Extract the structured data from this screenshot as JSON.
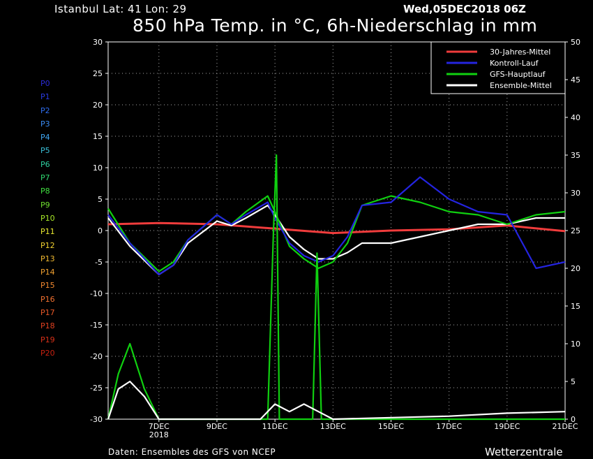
{
  "header": {
    "location": "Istanbul   Lat: 41  Lon: 29",
    "date": "Wed,05DEC2018 06Z",
    "title": "850 hPa Temp. in °C, 6h-Niederschlag in mm"
  },
  "members": [
    {
      "label": "P0",
      "color": "#2a2ad8"
    },
    {
      "label": "P1",
      "color": "#2a3ae0"
    },
    {
      "label": "P2",
      "color": "#2f6ef0"
    },
    {
      "label": "P3",
      "color": "#3a8cf4"
    },
    {
      "label": "P4",
      "color": "#40a8f4"
    },
    {
      "label": "P5",
      "color": "#3ac0d8"
    },
    {
      "label": "P6",
      "color": "#2ed0a0"
    },
    {
      "label": "P7",
      "color": "#30d870"
    },
    {
      "label": "P8",
      "color": "#40e040"
    },
    {
      "label": "P9",
      "color": "#70e030"
    },
    {
      "label": "P10",
      "color": "#a8e828"
    },
    {
      "label": "P11",
      "color": "#e8e830"
    },
    {
      "label": "P12",
      "color": "#f0d030"
    },
    {
      "label": "P13",
      "color": "#f0b830"
    },
    {
      "label": "P14",
      "color": "#f0a030"
    },
    {
      "label": "P15",
      "color": "#f08830"
    },
    {
      "label": "P16",
      "color": "#f07030"
    },
    {
      "label": "P17",
      "color": "#e85828"
    },
    {
      "label": "P18",
      "color": "#e04020"
    },
    {
      "label": "P19",
      "color": "#d83018"
    },
    {
      "label": "P20",
      "color": "#c82010"
    }
  ],
  "footer": {
    "source": "Daten: Ensembles des GFS von NCEP",
    "brand": "Wetterzentrale"
  },
  "chart_data": {
    "type": "line",
    "left_axis": {
      "label": "850 hPa Temp. in °C",
      "range": [
        -30,
        30
      ],
      "ticks": [
        30,
        25,
        20,
        15,
        10,
        5,
        0,
        -5,
        -10,
        -15,
        -20,
        -25,
        -30
      ]
    },
    "right_axis": {
      "label": "6h-Niederschlag in mm",
      "range": [
        0,
        50
      ],
      "ticks": [
        50,
        45,
        40,
        35,
        30,
        25,
        20,
        15,
        10,
        5,
        0
      ]
    },
    "x_axis": {
      "range_days": [
        5.25,
        21
      ],
      "ticks": [
        {
          "day": 7,
          "label": "7DEC",
          "sub": "2018"
        },
        {
          "day": 9,
          "label": "9DEC"
        },
        {
          "day": 11,
          "label": "11DEC"
        },
        {
          "day": 13,
          "label": "13DEC"
        },
        {
          "day": 15,
          "label": "15DEC"
        },
        {
          "day": 17,
          "label": "17DEC"
        },
        {
          "day": 19,
          "label": "19DEC"
        },
        {
          "day": 21,
          "label": "21DEC"
        }
      ]
    },
    "grid": true,
    "legend": {
      "placement": "top-right",
      "entries": [
        {
          "name": "30-Jahres-Mittel",
          "color": "#f03c3c"
        },
        {
          "name": "Kontroll-Lauf",
          "color": "#2424e0"
        },
        {
          "name": "GFS-Hauptlauf",
          "color": "#10d010"
        },
        {
          "name": "Ensemble-Mittel",
          "color": "#ffffff"
        }
      ]
    },
    "series": [
      {
        "name": "30-Jahres-Mittel",
        "axis": "temp",
        "color": "#f03c3c",
        "points": [
          [
            5.25,
            1.0
          ],
          [
            7,
            1.2
          ],
          [
            9,
            1.0
          ],
          [
            11,
            0.3
          ],
          [
            13,
            -0.4
          ],
          [
            15,
            0.0
          ],
          [
            17,
            0.2
          ],
          [
            19,
            0.8
          ],
          [
            21,
            -0.1
          ]
        ]
      },
      {
        "name": "Ensemble-Mittel",
        "axis": "temp",
        "color": "#ffffff",
        "points": [
          [
            5.25,
            2.0
          ],
          [
            6,
            -2.5
          ],
          [
            7,
            -7.0
          ],
          [
            7.5,
            -5.5
          ],
          [
            8,
            -2.0
          ],
          [
            9,
            1.5
          ],
          [
            9.5,
            0.8
          ],
          [
            10,
            2.0
          ],
          [
            10.75,
            4.0
          ],
          [
            11,
            2.5
          ],
          [
            11.5,
            -1.0
          ],
          [
            12,
            -3.0
          ],
          [
            12.5,
            -4.5
          ],
          [
            13,
            -4.5
          ],
          [
            13.5,
            -3.5
          ],
          [
            14,
            -2.0
          ],
          [
            15,
            -2.0
          ],
          [
            16,
            -1.0
          ],
          [
            17,
            0.0
          ],
          [
            18,
            1.0
          ],
          [
            19,
            1.0
          ],
          [
            20,
            2.0
          ],
          [
            21,
            2.0
          ]
        ]
      },
      {
        "name": "GFS-Hauptlauf",
        "axis": "temp",
        "color": "#10d010",
        "points": [
          [
            5.25,
            3.5
          ],
          [
            6,
            -2.0
          ],
          [
            7,
            -6.5
          ],
          [
            7.5,
            -5.0
          ],
          [
            8,
            -1.5
          ],
          [
            9,
            2.5
          ],
          [
            9.5,
            1.0
          ],
          [
            10,
            3.0
          ],
          [
            10.75,
            5.5
          ],
          [
            11,
            3.0
          ],
          [
            11.5,
            -2.5
          ],
          [
            12,
            -4.5
          ],
          [
            12.5,
            -6.0
          ],
          [
            13,
            -5.0
          ],
          [
            13.5,
            -2.0
          ],
          [
            14,
            4.0
          ],
          [
            15,
            5.5
          ],
          [
            16,
            4.5
          ],
          [
            17,
            3.0
          ],
          [
            18,
            2.5
          ],
          [
            19,
            1.0
          ],
          [
            20,
            2.5
          ],
          [
            21,
            3.0
          ]
        ]
      },
      {
        "name": "Kontroll-Lauf",
        "axis": "temp",
        "color": "#2424e0",
        "points": [
          [
            5.25,
            2.5
          ],
          [
            6,
            -2.0
          ],
          [
            7,
            -7.0
          ],
          [
            7.5,
            -5.5
          ],
          [
            8,
            -1.5
          ],
          [
            9,
            2.5
          ],
          [
            9.5,
            1.0
          ],
          [
            10,
            2.5
          ],
          [
            10.75,
            4.5
          ],
          [
            11,
            2.0
          ],
          [
            11.5,
            -2.0
          ],
          [
            12,
            -4.0
          ],
          [
            12.5,
            -5.0
          ],
          [
            13,
            -4.0
          ],
          [
            13.5,
            -1.0
          ],
          [
            14,
            4.0
          ],
          [
            15,
            4.5
          ],
          [
            16,
            8.5
          ],
          [
            17,
            5.0
          ],
          [
            18,
            3.0
          ],
          [
            19,
            2.5
          ],
          [
            20,
            -6.0
          ],
          [
            21,
            -5.0
          ]
        ]
      },
      {
        "name": "GFS-Hauptlauf Niederschlag",
        "axis": "precip",
        "color": "#10d010",
        "points": [
          [
            5.25,
            0
          ],
          [
            5.6,
            6
          ],
          [
            6,
            10
          ],
          [
            6.5,
            4
          ],
          [
            7,
            0
          ],
          [
            10.75,
            0
          ],
          [
            10.95,
            25
          ],
          [
            11.05,
            35
          ],
          [
            11.15,
            0
          ],
          [
            12.3,
            0
          ],
          [
            12.45,
            22
          ],
          [
            12.6,
            0
          ],
          [
            21,
            0
          ]
        ]
      },
      {
        "name": "Ensemble-Mittel Niederschlag",
        "axis": "precip",
        "color": "#ffffff",
        "points": [
          [
            5.25,
            0
          ],
          [
            5.6,
            4
          ],
          [
            6,
            5
          ],
          [
            6.5,
            3
          ],
          [
            7,
            0
          ],
          [
            10.5,
            0
          ],
          [
            11,
            2
          ],
          [
            11.5,
            1
          ],
          [
            12,
            2
          ],
          [
            12.5,
            1
          ],
          [
            13,
            0
          ],
          [
            15,
            0.2
          ],
          [
            17,
            0.4
          ],
          [
            19,
            0.8
          ],
          [
            21,
            1
          ]
        ]
      }
    ]
  }
}
